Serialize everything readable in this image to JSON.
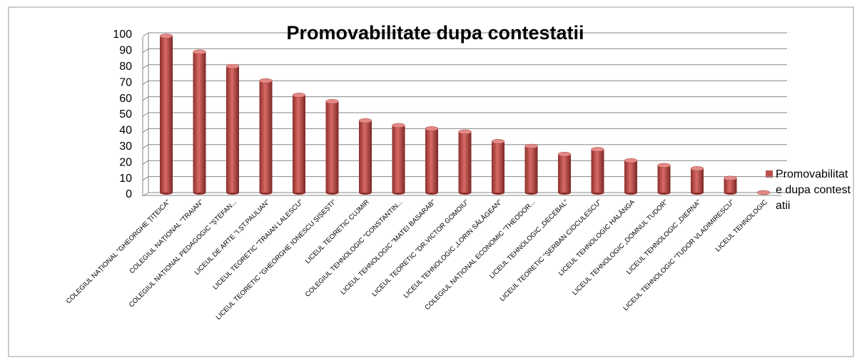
{
  "chart_data": {
    "type": "bar",
    "title": "Promovabilitate dupa contestatii",
    "categories": [
      "COLEGIUL NAȚIONAL \"GHEORGHE ȚIȚEICA\"",
      "COLEGIUL NAȚIONAL \"TRAIAN\"",
      "COLEGIUL NAȚIONAL PEDAGOGIC \"ȘTEFAN...",
      "LICEUL DE ARTE \"I.ȘT.PAULIAN\"",
      "LICEUL TEORETIC \"TRAIAN LALESCU\"",
      "LICEUL TEORETIC \"GHEORGHE IONESCU ȘIȘEȘTI\"",
      "LICEUL TEORETIC CUJMIR",
      "COLEGIUL TEHNOLOGIC \"CONSTANTIN...",
      "LICEUL TEHNOLOGIC \"MATEI BASARAB\"",
      "LICEUL TEORETIC \"DR.VICTOR GOMOIU\"",
      "LICEUL TEHNOLOGIC „LORIN SĂLĂGEAN\"",
      "COLEGIUL NAȚIONAL ECONOMIC \"THEODOR...",
      "LICEUL TEHNOLOGIC „DECEBAL\"",
      "LICEUL TEORETIC \"ȘERBAN CIOCULESCU\"",
      "LICEUL TEHNOLOGIC HALÂNGA",
      "LICEUL TEHNOLOGIC „DOMNUL TUDOR\"",
      "LICEUL TEHNOLOGIC „DIERNA\"",
      "LICEUL TEHNOLOGIC \"TUDOR VLADIMIRESCU\"",
      "LICEUL TEHNOLOGIC"
    ],
    "series": [
      {
        "name": "Promovabilitate dupa contestatii",
        "color": "#c0504d",
        "values": [
          98,
          88,
          79,
          70,
          61,
          57,
          45,
          42,
          40,
          38,
          32,
          29,
          24,
          27,
          20,
          17,
          15,
          9,
          0
        ]
      }
    ],
    "ylim": [
      0,
      100
    ],
    "yticks": [
      0,
      10,
      20,
      30,
      40,
      50,
      60,
      70,
      80,
      90,
      100
    ],
    "grid": true,
    "legend": "right"
  }
}
